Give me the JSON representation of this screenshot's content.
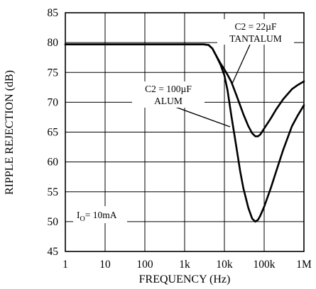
{
  "chart_data": {
    "type": "line",
    "xlabel": "FREQUENCY (Hz)",
    "ylabel": "RIPPLE REJECTION (dB)",
    "xscale": "log",
    "xlim": [
      1,
      1000000
    ],
    "ylim": [
      45,
      85
    ],
    "grid": true,
    "x_tick_labels": [
      "1",
      "10",
      "100",
      "1k",
      "10k",
      "100k",
      "1M"
    ],
    "y_tick_labels": [
      "45",
      "50",
      "55",
      "60",
      "65",
      "70",
      "75",
      "80",
      "85"
    ],
    "series": [
      {
        "name": "C2 = 22µF TANTALUM",
        "label_lines": [
          "C2 = 22µF",
          "TANTALUM"
        ],
        "points": [
          [
            1,
            79.7
          ],
          [
            100,
            79.7
          ],
          [
            1000,
            79.7
          ],
          [
            3000,
            79.7
          ],
          [
            4000,
            79.6
          ],
          [
            5000,
            79.0
          ],
          [
            6000,
            78.0
          ],
          [
            8000,
            76.5
          ],
          [
            10000,
            75.5
          ],
          [
            12000,
            74.6
          ],
          [
            15000,
            73.4
          ],
          [
            20000,
            71.2
          ],
          [
            30000,
            68.0
          ],
          [
            40000,
            66.0
          ],
          [
            50000,
            64.8
          ],
          [
            60000,
            64.3
          ],
          [
            70000,
            64.3
          ],
          [
            80000,
            64.6
          ],
          [
            100000,
            65.6
          ],
          [
            150000,
            67.4
          ],
          [
            200000,
            68.8
          ],
          [
            300000,
            70.5
          ],
          [
            500000,
            72.2
          ],
          [
            700000,
            72.9
          ],
          [
            1000000,
            73.5
          ]
        ]
      },
      {
        "name": "C2 = 100µF ALUM",
        "label_lines": [
          "C2 = 100µF",
          "ALUM"
        ],
        "points": [
          [
            1,
            79.7
          ],
          [
            100,
            79.7
          ],
          [
            1000,
            79.7
          ],
          [
            3000,
            79.7
          ],
          [
            4000,
            79.6
          ],
          [
            5000,
            79.0
          ],
          [
            6000,
            78.0
          ],
          [
            8000,
            76.3
          ],
          [
            10000,
            74.5
          ],
          [
            12000,
            72.0
          ],
          [
            15000,
            67.7
          ],
          [
            20000,
            62.5
          ],
          [
            25000,
            58.4
          ],
          [
            30000,
            55.6
          ],
          [
            40000,
            52.3
          ],
          [
            50000,
            50.5
          ],
          [
            60000,
            50.0
          ],
          [
            70000,
            50.3
          ],
          [
            80000,
            51.0
          ],
          [
            100000,
            52.5
          ],
          [
            150000,
            55.8
          ],
          [
            200000,
            58.4
          ],
          [
            300000,
            62.0
          ],
          [
            500000,
            66.0
          ],
          [
            700000,
            67.8
          ],
          [
            1000000,
            69.5
          ]
        ]
      }
    ],
    "annotations": [
      {
        "id": "io",
        "text": "I",
        "subscript": "O",
        "suffix": "= 10mA"
      }
    ]
  }
}
